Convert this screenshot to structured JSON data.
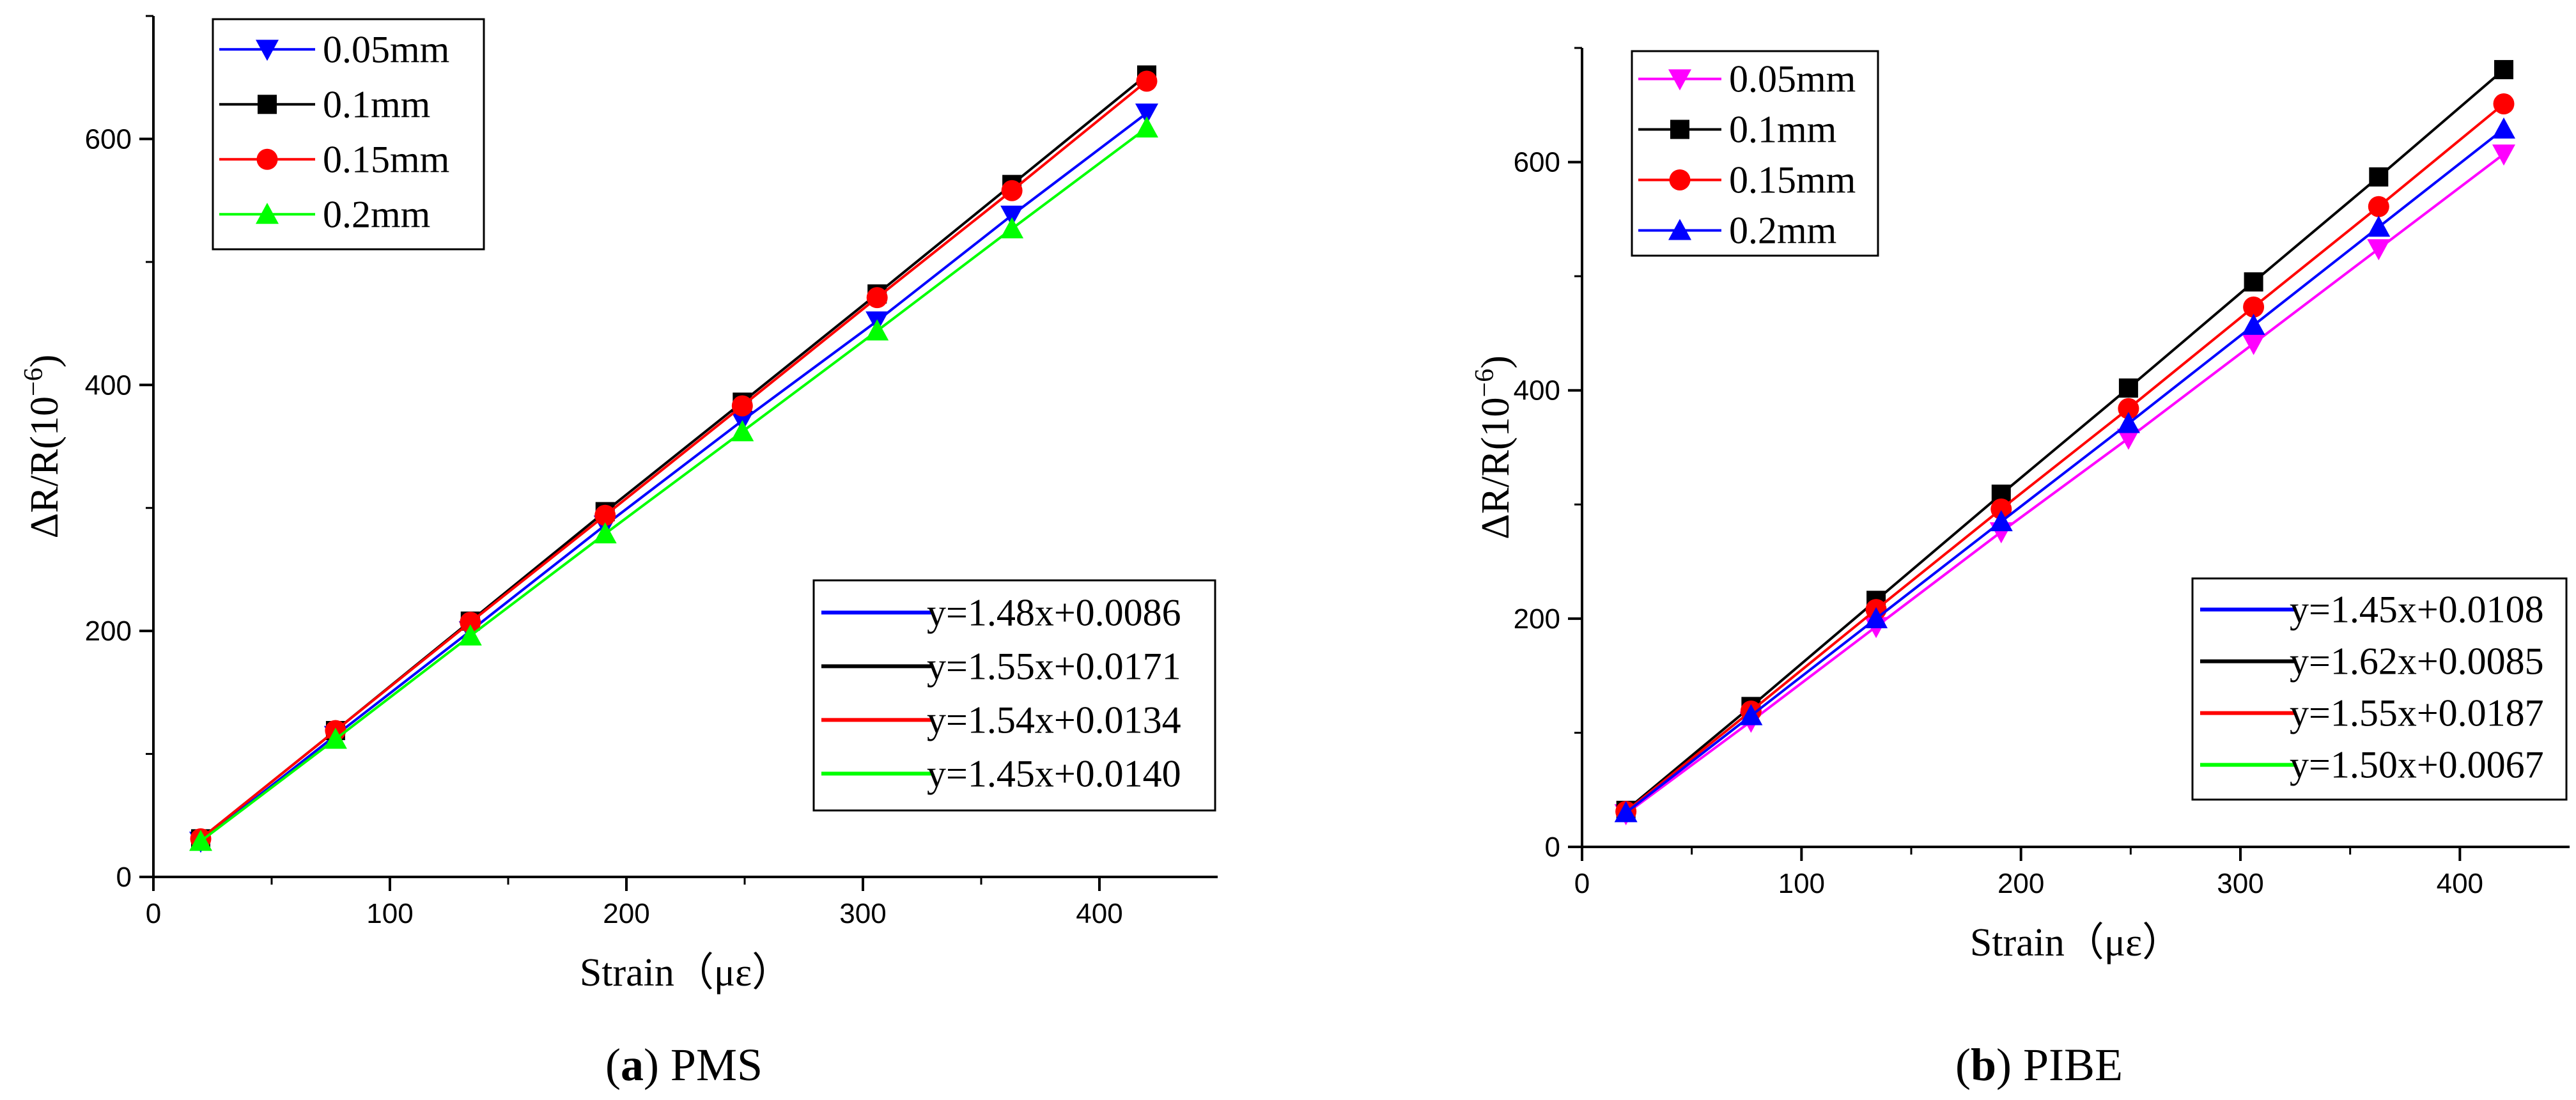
{
  "chart_data": [
    {
      "type": "line",
      "panel": "a",
      "caption_letter": "a",
      "caption_text": "PMS",
      "xlabel": "Strain（με）",
      "ylabel": "ΔR/R(10",
      "ylabel_exp": "−6",
      "ylabel_close": ")",
      "xlim": [
        0,
        450
      ],
      "ylim": [
        0,
        700
      ],
      "xticks": [
        0,
        100,
        200,
        300,
        400
      ],
      "yticks": [
        0,
        200,
        400,
        600
      ],
      "x": [
        20,
        77,
        134,
        191,
        249,
        306,
        363,
        420
      ],
      "series": [
        {
          "name": "0.05mm",
          "color": "#0000ff",
          "marker": "triangle-down",
          "values": [
            29,
            115,
            200,
            286,
            371,
            452,
            538,
            621
          ]
        },
        {
          "name": "0.1mm",
          "color": "#000000",
          "marker": "square",
          "values": [
            31,
            119,
            208,
            297,
            386,
            474,
            563,
            652
          ]
        },
        {
          "name": "0.15mm",
          "color": "#ff0000",
          "marker": "circle",
          "values": [
            31,
            119,
            207,
            294,
            383,
            471,
            558,
            647
          ]
        },
        {
          "name": "0.2mm",
          "color": "#00ff00",
          "marker": "triangle-up",
          "values": [
            29,
            112,
            196,
            279,
            362,
            444,
            527,
            609
          ]
        }
      ],
      "fits": [
        {
          "label": "y=1.48x+0.0086",
          "color": "#0000ff"
        },
        {
          "label": "y=1.55x+0.0171",
          "color": "#000000"
        },
        {
          "label": "y=1.54x+0.0134",
          "color": "#ff0000"
        },
        {
          "label": "y=1.45x+0.0140",
          "color": "#00ff00"
        }
      ]
    },
    {
      "type": "line",
      "panel": "b",
      "caption_letter": "b",
      "caption_text": "PIBE",
      "xlabel": "Strain（με）",
      "ylabel": "ΔR/R(10",
      "ylabel_exp": "−6",
      "ylabel_close": ")",
      "xlim": [
        0,
        450
      ],
      "ylim": [
        0,
        700
      ],
      "xticks": [
        0,
        100,
        200,
        300,
        400
      ],
      "yticks": [
        0,
        200,
        400,
        600
      ],
      "x": [
        20,
        77,
        134,
        191,
        249,
        306,
        363,
        420
      ],
      "series": [
        {
          "name": "0.05mm",
          "color": "#ff00ff",
          "marker": "triangle-down",
          "values": [
            29,
            110,
            193,
            276,
            358,
            441,
            524,
            607
          ]
        },
        {
          "name": "0.1mm",
          "color": "#000000",
          "marker": "square",
          "values": [
            32,
            123,
            216,
            309,
            402,
            495,
            587,
            681
          ]
        },
        {
          "name": "0.15mm",
          "color": "#ff0000",
          "marker": "circle",
          "values": [
            31,
            119,
            208,
            296,
            384,
            473,
            561,
            651
          ]
        },
        {
          "name": "0.2mm",
          "color": "#0000ff",
          "marker": "triangle-up",
          "values": [
            30,
            115,
            200,
            285,
            371,
            457,
            543,
            629
          ]
        }
      ],
      "fits": [
        {
          "label": "y=1.45x+0.0108",
          "color": "#0000ff"
        },
        {
          "label": "y=1.62x+0.0085",
          "color": "#000000"
        },
        {
          "label": "y=1.55x+0.0187",
          "color": "#ff0000"
        },
        {
          "label": "y=1.50x+0.0067",
          "color": "#00ff00"
        }
      ]
    }
  ]
}
